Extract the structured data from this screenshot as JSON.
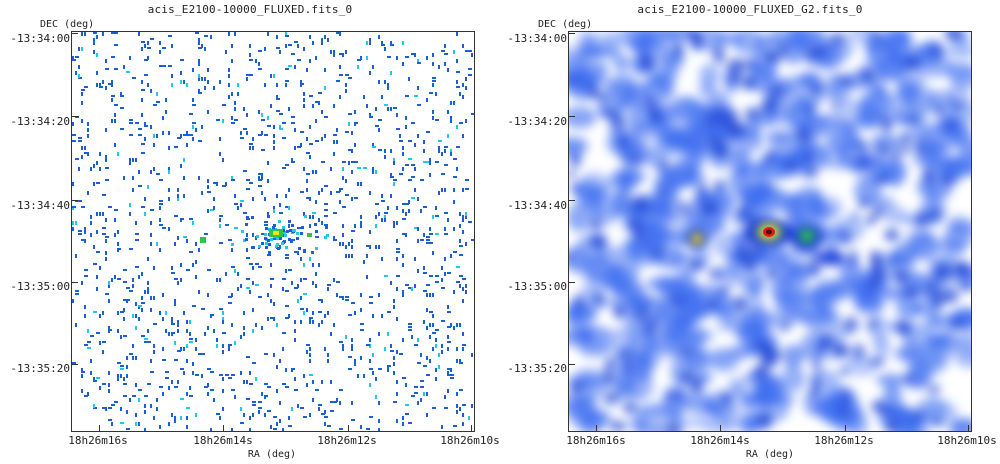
{
  "panels": [
    {
      "title": "acis_E2100-10000_FLUXED.fits_0",
      "y_axis_name": "DEC (deg)",
      "x_axis_name": "RA (deg)",
      "y_ticks": [
        "-13:34:00",
        "-13:34:20",
        "-13:34:40",
        "-13:35:00",
        "-13:35:20"
      ],
      "x_ticks": [
        "18h26m16s",
        "18h26m14s",
        "18h26m12s",
        "18h26m10s"
      ],
      "colormap": "sparse-counts",
      "background": "#ffffff"
    },
    {
      "title": "acis_E2100-10000_FLUXED_G2.fits_0",
      "y_axis_name": "DEC (deg)",
      "x_axis_name": "RA (deg)",
      "y_ticks": [
        "-13:34:00",
        "-13:34:20",
        "-13:34:40",
        "-13:35:00",
        "-13:35:20"
      ],
      "x_ticks": [
        "18h26m16s",
        "18h26m14s",
        "18h26m12s",
        "18h26m10s"
      ],
      "colormap": "smoothed-jet",
      "background": "#ffffff"
    }
  ],
  "colors": {
    "pixel_blue": "#1a5fd6",
    "pixel_cyan": "#22c8e8",
    "source_green": "#2ec44a",
    "source_yellow": "#f6e21a",
    "source_red": "#d81e1e",
    "smooth_blue": "#2a4ed8"
  }
}
